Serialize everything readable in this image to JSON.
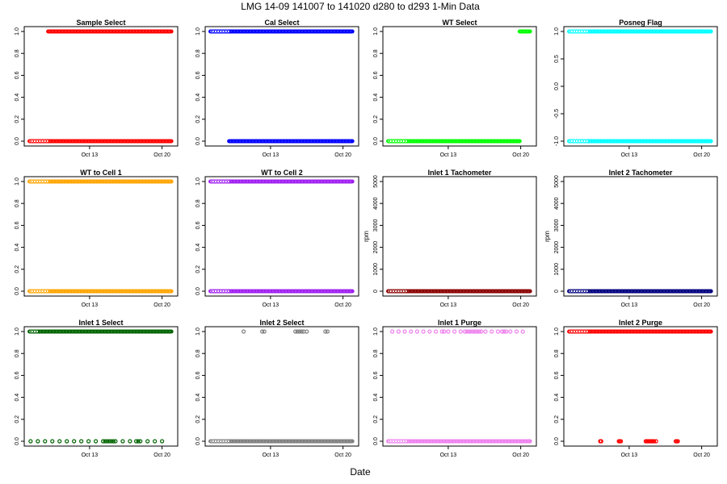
{
  "figure": {
    "title": "LMG   14-09    141007 to 141020    d280 to d293   1-Min Data",
    "xlabel": "Date"
  },
  "chart_data": [
    {
      "type": "scatter",
      "title": "Sample Select",
      "ylabel": "",
      "color": "#ff0000",
      "x_ticks": [
        {
          "label": "Oct 13",
          "day": 13
        },
        {
          "label": "Oct 20",
          "day": 20
        }
      ],
      "xlim": [
        7,
        21.2
      ],
      "ylim": [
        0,
        1
      ],
      "yticks": [
        0,
        0.2,
        0.4,
        0.6,
        0.8,
        1.0
      ],
      "y_tick_labels": [
        "0.0",
        "0.2",
        "0.4",
        "0.6",
        "0.8",
        "1.0"
      ],
      "segments": [
        {
          "y": 0,
          "x0": 7.2,
          "x1": 20.9
        },
        {
          "y": 1,
          "x0": 9.0,
          "x1": 20.9
        }
      ],
      "sparse_before": [
        {
          "y": 0,
          "x0": 7.2,
          "x1": 9.0
        }
      ]
    },
    {
      "type": "scatter",
      "title": "Cal Select",
      "ylabel": "",
      "color": "#0000ff",
      "x_ticks": [
        {
          "label": "Oct 13",
          "day": 13
        },
        {
          "label": "Oct 20",
          "day": 20
        }
      ],
      "xlim": [
        7,
        21.2
      ],
      "ylim": [
        0,
        1
      ],
      "yticks": [
        0,
        0.2,
        0.4,
        0.6,
        0.8,
        1.0
      ],
      "y_tick_labels": [
        "0.0",
        "0.2",
        "0.4",
        "0.6",
        "0.8",
        "1.0"
      ],
      "segments": [
        {
          "y": 1,
          "x0": 7.2,
          "x1": 20.9
        },
        {
          "y": 0,
          "x0": 9.0,
          "x1": 20.9
        }
      ],
      "sparse_before": [
        {
          "y": 1,
          "x0": 7.2,
          "x1": 9.0
        }
      ]
    },
    {
      "type": "scatter",
      "title": "WT Select",
      "ylabel": "",
      "color": "#00ff00",
      "x_ticks": [
        {
          "label": "Oct 13",
          "day": 13
        },
        {
          "label": "Oct 20",
          "day": 20
        }
      ],
      "xlim": [
        7,
        21.2
      ],
      "ylim": [
        0,
        1
      ],
      "yticks": [
        0,
        0.2,
        0.4,
        0.6,
        0.8,
        1.0
      ],
      "y_tick_labels": [
        "0.0",
        "0.2",
        "0.4",
        "0.6",
        "0.8",
        "1.0"
      ],
      "segments": [
        {
          "y": 0,
          "x0": 7.2,
          "x1": 19.9
        },
        {
          "y": 1,
          "x0": 19.9,
          "x1": 20.9
        }
      ],
      "sparse_before": [
        {
          "y": 0,
          "x0": 7.2,
          "x1": 9.0
        }
      ]
    },
    {
      "type": "scatter",
      "title": "Posneg Flag",
      "ylabel": "",
      "color": "#00ffff",
      "x_ticks": [
        {
          "label": "Oct 13",
          "day": 13
        },
        {
          "label": "Oct 20",
          "day": 20
        }
      ],
      "xlim": [
        7,
        21.2
      ],
      "ylim": [
        -1,
        1
      ],
      "yticks": [
        -1,
        -0.5,
        0,
        0.5,
        1.0
      ],
      "y_tick_labels": [
        "-1.0",
        "-0.5",
        "0.0",
        "0.5",
        "1.0"
      ],
      "segments": [
        {
          "y": 1,
          "x0": 7.2,
          "x1": 20.9
        },
        {
          "y": -1,
          "x0": 7.2,
          "x1": 20.9
        }
      ],
      "sparse_before": [
        {
          "y": 1,
          "x0": 7.2,
          "x1": 9.0
        },
        {
          "y": -1,
          "x0": 7.2,
          "x1": 9.0
        }
      ]
    },
    {
      "type": "scatter",
      "title": "WT to Cell 1",
      "ylabel": "",
      "color": "#ffa500",
      "x_ticks": [
        {
          "label": "Oct 13",
          "day": 13
        },
        {
          "label": "Oct 20",
          "day": 20
        }
      ],
      "xlim": [
        7,
        21.2
      ],
      "ylim": [
        0,
        1
      ],
      "yticks": [
        0,
        0.2,
        0.4,
        0.6,
        0.8,
        1.0
      ],
      "y_tick_labels": [
        "0.0",
        "0.2",
        "0.4",
        "0.6",
        "0.8",
        "1.0"
      ],
      "segments": [
        {
          "y": 1,
          "x0": 7.2,
          "x1": 20.9
        },
        {
          "y": 0,
          "x0": 7.2,
          "x1": 20.9
        }
      ],
      "sparse_before": [
        {
          "y": 1,
          "x0": 7.2,
          "x1": 9.0
        },
        {
          "y": 0,
          "x0": 7.2,
          "x1": 9.0
        }
      ]
    },
    {
      "type": "scatter",
      "title": "WT to Cell 2",
      "ylabel": "",
      "color": "#a020f0",
      "x_ticks": [
        {
          "label": "Oct 13",
          "day": 13
        },
        {
          "label": "Oct 20",
          "day": 20
        }
      ],
      "xlim": [
        7,
        21.2
      ],
      "ylim": [
        0,
        1
      ],
      "yticks": [
        0,
        0.2,
        0.4,
        0.6,
        0.8,
        1.0
      ],
      "y_tick_labels": [
        "0.0",
        "0.2",
        "0.4",
        "0.6",
        "0.8",
        "1.0"
      ],
      "segments": [
        {
          "y": 1,
          "x0": 7.2,
          "x1": 20.9
        },
        {
          "y": 0,
          "x0": 7.2,
          "x1": 20.9
        }
      ],
      "sparse_before": [
        {
          "y": 1,
          "x0": 7.2,
          "x1": 9.0
        },
        {
          "y": 0,
          "x0": 7.2,
          "x1": 9.0
        }
      ]
    },
    {
      "type": "scatter",
      "title": "Inlet 1 Tachometer",
      "ylabel": "rpm",
      "color": "#8b0000",
      "x_ticks": [
        {
          "label": "Oct 13",
          "day": 13
        },
        {
          "label": "Oct 20",
          "day": 20
        }
      ],
      "xlim": [
        7,
        21.2
      ],
      "ylim": [
        0,
        5000
      ],
      "yticks": [
        0,
        1000,
        2000,
        3000,
        4000,
        5000
      ],
      "y_tick_labels": [
        "0",
        "1000",
        "2000",
        "3000",
        "4000",
        "5000"
      ],
      "segments": [
        {
          "y": 0,
          "x0": 7.2,
          "x1": 20.9
        }
      ],
      "sparse_before": [
        {
          "y": 0,
          "x0": 7.2,
          "x1": 9.0
        }
      ]
    },
    {
      "type": "scatter",
      "title": "Inlet 2 Tachometer",
      "ylabel": "rpm",
      "color": "#000080",
      "x_ticks": [
        {
          "label": "Oct 13",
          "day": 13
        },
        {
          "label": "Oct 20",
          "day": 20
        }
      ],
      "xlim": [
        7,
        21.2
      ],
      "ylim": [
        0,
        5000
      ],
      "yticks": [
        0,
        1000,
        2000,
        3000,
        4000,
        5000
      ],
      "y_tick_labels": [
        "0",
        "1000",
        "2000",
        "3000",
        "4000",
        "5000"
      ],
      "segments": [
        {
          "y": 0,
          "x0": 7.2,
          "x1": 20.9
        }
      ],
      "sparse_before": [
        {
          "y": 0,
          "x0": 7.2,
          "x1": 9.0
        }
      ]
    },
    {
      "type": "scatter",
      "title": "Inlet 1 Select",
      "ylabel": "",
      "color": "#006400",
      "x_ticks": [
        {
          "label": "Oct 13",
          "day": 13
        },
        {
          "label": "Oct 20",
          "day": 20
        }
      ],
      "xlim": [
        7,
        21.2
      ],
      "ylim": [
        0,
        1
      ],
      "yticks": [
        0,
        0.2,
        0.4,
        0.6,
        0.8,
        1.0
      ],
      "y_tick_labels": [
        "0.0",
        "0.2",
        "0.4",
        "0.6",
        "0.8",
        "1.0"
      ],
      "segments": [
        {
          "y": 1,
          "x0": 7.2,
          "x1": 20.9
        }
      ],
      "sparse_before": [
        {
          "y": 1,
          "x0": 7.2,
          "x1": 8.0
        }
      ],
      "scattered": [
        {
          "y": 0,
          "xs": [
            7.3,
            8.0,
            8.7,
            9.4,
            10.1,
            10.8,
            11.5,
            12.2,
            12.9,
            13.6,
            14.3,
            14.5,
            14.7,
            14.9,
            15.1,
            15.3,
            15.5,
            16.2,
            16.9,
            17.5,
            17.7,
            17.9,
            18.6,
            19.3,
            20.0
          ]
        }
      ]
    },
    {
      "type": "scatter",
      "title": "Inlet 2 Select",
      "ylabel": "",
      "color": "#808080",
      "x_ticks": [
        {
          "label": "Oct 13",
          "day": 13
        },
        {
          "label": "Oct 20",
          "day": 20
        }
      ],
      "xlim": [
        7,
        21.2
      ],
      "ylim": [
        0,
        1
      ],
      "yticks": [
        0,
        0.2,
        0.4,
        0.6,
        0.8,
        1.0
      ],
      "y_tick_labels": [
        "0.0",
        "0.2",
        "0.4",
        "0.6",
        "0.8",
        "1.0"
      ],
      "segments": [
        {
          "y": 0,
          "x0": 7.2,
          "x1": 20.9
        }
      ],
      "sparse_before": [
        {
          "y": 0,
          "x0": 7.2,
          "x1": 9.0
        }
      ],
      "scattered": [
        {
          "y": 1,
          "xs": [
            10.4,
            12.2,
            12.4,
            15.4,
            15.6,
            15.8,
            16.0,
            16.2,
            16.5,
            18.3,
            18.5
          ]
        }
      ]
    },
    {
      "type": "scatter",
      "title": "Inlet 1 Purge",
      "ylabel": "",
      "color": "#ee82ee",
      "x_ticks": [
        {
          "label": "Oct 13",
          "day": 13
        },
        {
          "label": "Oct 20",
          "day": 20
        }
      ],
      "xlim": [
        7,
        21.2
      ],
      "ylim": [
        0,
        1
      ],
      "yticks": [
        0,
        0.2,
        0.4,
        0.6,
        0.8,
        1.0
      ],
      "y_tick_labels": [
        "0.0",
        "0.2",
        "0.4",
        "0.6",
        "0.8",
        "1.0"
      ],
      "segments": [
        {
          "y": 0,
          "x0": 7.2,
          "x1": 20.9
        }
      ],
      "sparse_before": [
        {
          "y": 0,
          "x0": 7.2,
          "x1": 9.0
        }
      ],
      "scattered": [
        {
          "y": 1,
          "xs": [
            7.6,
            8.2,
            8.8,
            9.4,
            10.0,
            10.6,
            11.2,
            11.8,
            12.4,
            12.6,
            13.0,
            13.6,
            14.2,
            14.6,
            14.8,
            15.0,
            15.2,
            15.4,
            15.6,
            15.8,
            16.0,
            16.2,
            16.6,
            17.2,
            17.8,
            18.2,
            18.4,
            18.6,
            19.0,
            19.6,
            20.2
          ]
        }
      ]
    },
    {
      "type": "scatter",
      "title": "Inlet 2 Purge",
      "ylabel": "",
      "color": "#ff0000",
      "x_ticks": [
        {
          "label": "Oct 13",
          "day": 13
        },
        {
          "label": "Oct 20",
          "day": 20
        }
      ],
      "xlim": [
        7,
        21.2
      ],
      "ylim": [
        0,
        1
      ],
      "yticks": [
        0,
        0.2,
        0.4,
        0.6,
        0.8,
        1.0
      ],
      "y_tick_labels": [
        "0.0",
        "0.2",
        "0.4",
        "0.6",
        "0.8",
        "1.0"
      ],
      "segments": [
        {
          "y": 1,
          "x0": 7.2,
          "x1": 20.9
        }
      ],
      "sparse_before": [
        {
          "y": 1,
          "x0": 7.2,
          "x1": 9.0
        }
      ],
      "scattered": [
        {
          "y": 0,
          "xs": [
            10.2,
            10.3,
            12.0,
            12.1,
            12.2,
            14.6,
            14.7,
            14.8,
            14.9,
            15.0,
            15.1,
            15.2,
            15.3,
            15.4,
            15.6,
            17.5,
            17.6,
            17.7
          ]
        }
      ]
    }
  ]
}
